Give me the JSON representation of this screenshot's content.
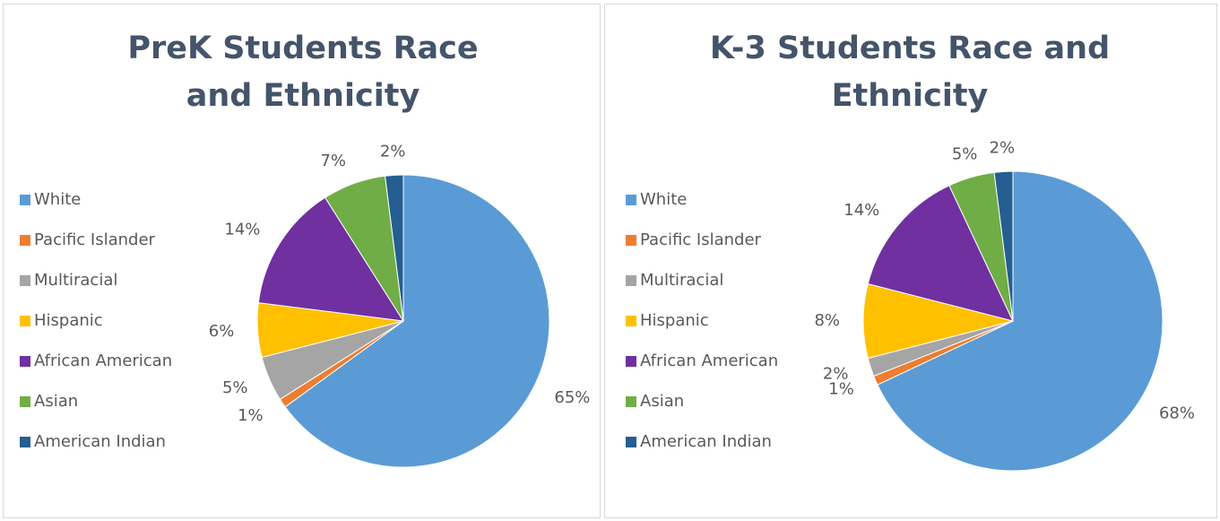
{
  "chart_data": [
    {
      "type": "pie",
      "title": "PreK Students Race and Ethnicity",
      "categories": [
        "White",
        "Pacific Islander",
        "Multiracial",
        "Hispanic",
        "African American",
        "Asian",
        "American Indian"
      ],
      "values": [
        65,
        1,
        5,
        6,
        14,
        7,
        2
      ],
      "value_labels": [
        "65%",
        "1%",
        "5%",
        "6%",
        "14%",
        "7%",
        "2%"
      ],
      "colors": [
        "#5b9bd5",
        "#ed7d31",
        "#a5a5a5",
        "#ffc000",
        "#7030a0",
        "#70ad47",
        "#255e91"
      ],
      "legend": "left"
    },
    {
      "type": "pie",
      "title": "K-3 Students Race and Ethnicity",
      "categories": [
        "White",
        "Pacific Islander",
        "Multiracial",
        "Hispanic",
        "African American",
        "Asian",
        "American Indian"
      ],
      "values": [
        68,
        1,
        2,
        8,
        14,
        5,
        2
      ],
      "value_labels": [
        "68%",
        "1%",
        "2%",
        "8%",
        "14%",
        "5%",
        "2%"
      ],
      "colors": [
        "#5b9bd5",
        "#ed7d31",
        "#a5a5a5",
        "#ffc000",
        "#7030a0",
        "#70ad47",
        "#255e91"
      ],
      "legend": "left"
    }
  ]
}
